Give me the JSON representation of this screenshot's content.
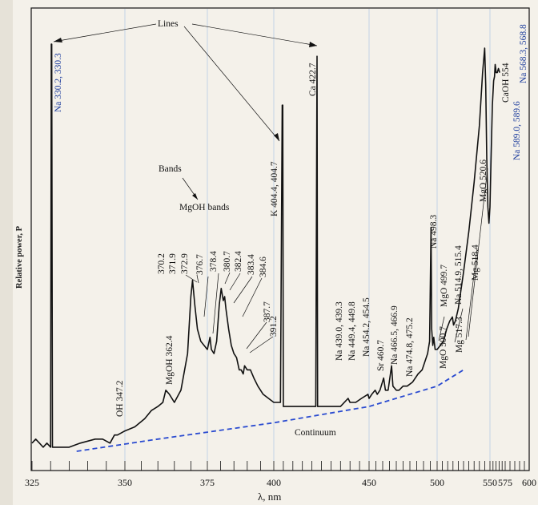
{
  "chart_data": {
    "type": "line",
    "title": "",
    "xlabel": "λ, nm",
    "ylabel": "Relative power, P",
    "x_ticks": [
      {
        "value": 325,
        "label": "325"
      },
      {
        "value": 350,
        "label": "350"
      },
      {
        "value": 375,
        "label": "375"
      },
      {
        "value": 400,
        "label": "400"
      },
      {
        "value": 450,
        "label": "450"
      },
      {
        "value": 500,
        "label": "500"
      },
      {
        "value": 550,
        "label": "550"
      },
      {
        "value": 575,
        "label": "575"
      },
      {
        "value": 600,
        "label": "600"
      }
    ],
    "grid_x": [
      350,
      375,
      400,
      450,
      500,
      550
    ],
    "grid": true,
    "series": [
      {
        "kind": "spectrum",
        "points": [
          [
            325,
            0.02
          ],
          [
            326,
            0.03
          ],
          [
            327,
            0.02
          ],
          [
            328,
            0.01
          ],
          [
            329,
            0.02
          ],
          [
            330,
            0.01
          ],
          [
            330.2,
            1.0
          ],
          [
            330.3,
            1.0
          ],
          [
            330.5,
            0.01
          ],
          [
            332,
            0.01
          ],
          [
            335,
            0.01
          ],
          [
            338,
            0.02
          ],
          [
            342,
            0.03
          ],
          [
            344,
            0.03
          ],
          [
            346,
            0.02
          ],
          [
            347.2,
            0.04
          ],
          [
            348,
            0.04
          ],
          [
            350,
            0.05
          ],
          [
            353,
            0.06
          ],
          [
            356,
            0.08
          ],
          [
            358,
            0.1
          ],
          [
            360,
            0.11
          ],
          [
            361.5,
            0.12
          ],
          [
            362.4,
            0.15
          ],
          [
            363.5,
            0.14
          ],
          [
            365,
            0.12
          ],
          [
            367,
            0.15
          ],
          [
            369,
            0.24
          ],
          [
            370,
            0.38
          ],
          [
            370.5,
            0.42
          ],
          [
            371.2,
            0.36
          ],
          [
            372,
            0.3
          ],
          [
            373,
            0.27
          ],
          [
            374,
            0.26
          ],
          [
            375,
            0.25
          ],
          [
            376,
            0.28
          ],
          [
            376.5,
            0.25
          ],
          [
            377.5,
            0.24
          ],
          [
            378.5,
            0.27
          ],
          [
            379.5,
            0.36
          ],
          [
            380.2,
            0.4
          ],
          [
            381,
            0.37
          ],
          [
            381.5,
            0.38
          ],
          [
            382,
            0.35
          ],
          [
            383,
            0.3
          ],
          [
            384,
            0.26
          ],
          [
            385,
            0.24
          ],
          [
            386,
            0.23
          ],
          [
            387,
            0.2
          ],
          [
            387.7,
            0.2
          ],
          [
            388.5,
            0.19
          ],
          [
            389,
            0.21
          ],
          [
            390,
            0.2
          ],
          [
            391.2,
            0.2
          ],
          [
            392.5,
            0.18
          ],
          [
            394,
            0.16
          ],
          [
            396,
            0.14
          ],
          [
            398,
            0.13
          ],
          [
            400,
            0.12
          ],
          [
            402,
            0.12
          ],
          [
            403.5,
            0.12
          ],
          [
            404.4,
            0.85
          ],
          [
            404.7,
            0.85
          ],
          [
            405,
            0.11
          ],
          [
            407,
            0.11
          ],
          [
            410,
            0.11
          ],
          [
            415,
            0.11
          ],
          [
            420,
            0.11
          ],
          [
            422,
            0.11
          ],
          [
            422.7,
            0.97
          ],
          [
            423,
            0.11
          ],
          [
            425,
            0.11
          ],
          [
            430,
            0.11
          ],
          [
            435,
            0.11
          ],
          [
            439,
            0.13
          ],
          [
            440,
            0.12
          ],
          [
            443,
            0.12
          ],
          [
            446,
            0.13
          ],
          [
            449.4,
            0.14
          ],
          [
            450,
            0.13
          ],
          [
            452,
            0.14
          ],
          [
            454.5,
            0.15
          ],
          [
            456,
            0.14
          ],
          [
            458,
            0.15
          ],
          [
            460.7,
            0.18
          ],
          [
            462,
            0.15
          ],
          [
            464,
            0.15
          ],
          [
            466.5,
            0.21
          ],
          [
            467.5,
            0.16
          ],
          [
            470,
            0.15
          ],
          [
            472,
            0.15
          ],
          [
            475,
            0.16
          ],
          [
            478,
            0.16
          ],
          [
            482,
            0.17
          ],
          [
            486,
            0.19
          ],
          [
            489,
            0.2
          ],
          [
            491,
            0.22
          ],
          [
            493,
            0.24
          ],
          [
            494.5,
            0.27
          ],
          [
            495.5,
            0.55
          ],
          [
            496,
            0.3
          ],
          [
            496.8,
            0.26
          ],
          [
            497.5,
            0.28
          ],
          [
            498.5,
            0.25
          ],
          [
            500,
            0.25
          ],
          [
            503,
            0.26
          ],
          [
            506,
            0.27
          ],
          [
            509,
            0.3
          ],
          [
            512,
            0.32
          ],
          [
            514.5,
            0.33
          ],
          [
            515.5,
            0.31
          ],
          [
            517.3,
            0.32
          ],
          [
            520,
            0.35
          ],
          [
            525,
            0.44
          ],
          [
            530,
            0.54
          ],
          [
            535,
            0.66
          ],
          [
            540,
            0.8
          ],
          [
            543,
            0.93
          ],
          [
            545,
            0.99
          ],
          [
            546,
            0.9
          ],
          [
            547,
            0.72
          ],
          [
            548,
            0.6
          ],
          [
            549,
            0.56
          ],
          [
            550,
            0.6
          ],
          [
            552,
            0.73
          ],
          [
            554,
            0.85
          ],
          [
            556,
            0.91
          ],
          [
            557.5,
            0.92
          ],
          [
            558.5,
            0.95
          ],
          [
            559.5,
            0.94
          ],
          [
            560,
            0.93
          ],
          [
            562,
            0.93
          ],
          [
            564,
            0.94
          ],
          [
            566,
            0.93
          ]
        ]
      },
      {
        "kind": "continuum",
        "name": "Continuum",
        "points": [
          [
            337,
            0.0
          ],
          [
            360,
            0.03
          ],
          [
            400,
            0.07
          ],
          [
            450,
            0.11
          ],
          [
            500,
            0.16
          ],
          [
            525,
            0.2
          ]
        ]
      }
    ],
    "annotations": {
      "lines_label": "Lines",
      "bands_label": "Bands",
      "mgoh_bands_label": "MgOH bands",
      "continuum_label": "Continuum",
      "mgoh_362": "MgOH 362.4",
      "oh_347": "OH 347.2",
      "na_330": "Na 330.2, 330.3",
      "k_404": "K 404.4, 404.7",
      "ca_422": "Ca 422.7",
      "band_labels": [
        "370.2",
        "371.9",
        "372.9",
        "376.7",
        "378.4",
        "380.7",
        "382.4",
        "383.4",
        "384.6",
        "387.7",
        "391.2"
      ],
      "na_439": "Na 439.0, 439.3",
      "na_449": "Na 449.4, 449.8",
      "na_454": "Na 454.2, 454.5",
      "sr_460": "Sr 460.7",
      "na_466": "Na 466.5, 466.9",
      "na_474": "Na 474.8, 475.2",
      "na_498": "Na 498.3",
      "mgo_499": "MgO 499.7",
      "mgo_500": "MgO 500.7",
      "na_514": "Na 514.9, 515.4",
      "mg_517": "Mg 517.3",
      "mg_518": "Mg 518.4",
      "mgo_520": "MgO 520.6",
      "caoh_554": "CaOH 554",
      "na_568": "Na 568.3, 568.8",
      "na_589": "Na 589.0, 589.6"
    },
    "colors": {
      "spectrum": "#111111",
      "continuum": "#2a4bd0",
      "grid": "#b6cbe6",
      "blue_labels": "#1f3f9e",
      "background": "#f4f1ea"
    }
  }
}
